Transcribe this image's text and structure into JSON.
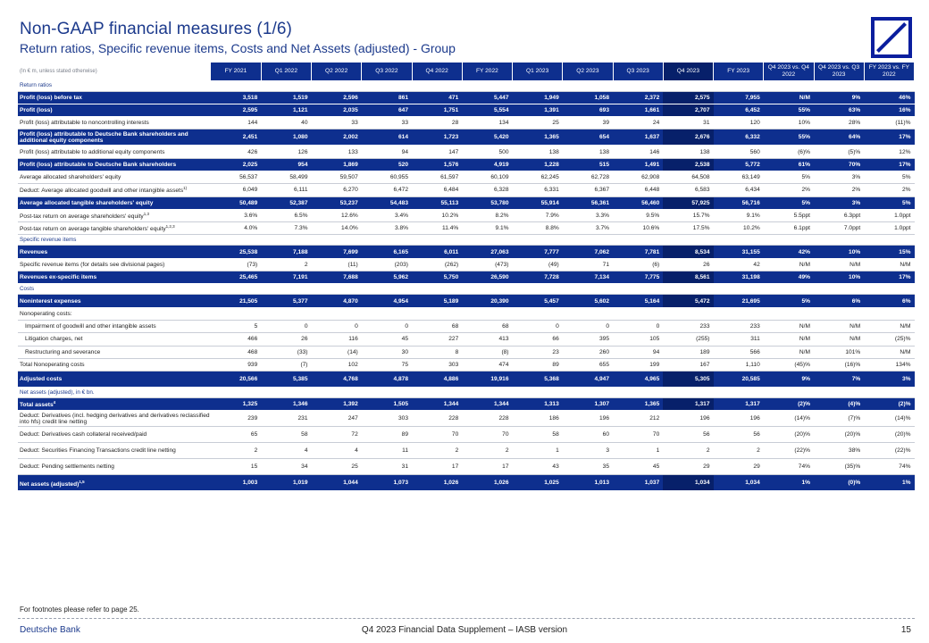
{
  "header": {
    "title": "Non-GAAP financial measures (1/6)",
    "subtitle": "Return ratios, Specific revenue items, Costs and Net Assets (adjusted) - Group"
  },
  "table": {
    "unit_note": "(In € m, unless stated otherwise)",
    "columns": [
      "FY 2021",
      "Q1 2022",
      "Q2 2022",
      "Q3 2022",
      "Q4 2022",
      "FY 2022",
      "Q1 2023",
      "Q2 2023",
      "Q3 2023",
      "Q4 2023",
      "FY 2023",
      "Q4 2023 vs. Q4 2022",
      "Q4 2023 vs. Q3 2023",
      "FY 2023 vs. FY 2022"
    ],
    "rows": [
      {
        "type": "sec",
        "label": "Return ratios"
      },
      {
        "type": "bold",
        "label": "Profit (loss) before tax",
        "v": [
          "3,518",
          "1,519",
          "2,596",
          "861",
          "471",
          "5,447",
          "1,949",
          "1,058",
          "2,372",
          "2,575",
          "7,955",
          "N/M",
          "9%",
          "46%"
        ]
      },
      {
        "type": "bold",
        "label": "Profit (loss)",
        "v": [
          "2,595",
          "1,121",
          "2,035",
          "647",
          "1,751",
          "5,554",
          "1,391",
          "693",
          "1,661",
          "2,707",
          "6,452",
          "55%",
          "63%",
          "16%"
        ]
      },
      {
        "type": "norm",
        "label": "Profit (loss) attributable to noncontrolling interests",
        "v": [
          "144",
          "40",
          "33",
          "33",
          "28",
          "134",
          "25",
          "39",
          "24",
          "31",
          "120",
          "10%",
          "28%",
          "(11)%"
        ]
      },
      {
        "type": "bold tall",
        "label": "Profit (loss) attributable to Deutsche Bank shareholders and additional equity components",
        "v": [
          "2,451",
          "1,080",
          "2,002",
          "614",
          "1,723",
          "5,420",
          "1,365",
          "654",
          "1,637",
          "2,676",
          "6,332",
          "55%",
          "64%",
          "17%"
        ]
      },
      {
        "type": "norm",
        "label": "Profit (loss) attributable to additional equity components",
        "v": [
          "426",
          "126",
          "133",
          "94",
          "147",
          "500",
          "138",
          "138",
          "146",
          "138",
          "560",
          "(6)%",
          "(5)%",
          "12%"
        ]
      },
      {
        "type": "bold",
        "label": "Profit (loss) attributable to Deutsche Bank shareholders",
        "v": [
          "2,025",
          "954",
          "1,869",
          "520",
          "1,576",
          "4,919",
          "1,228",
          "515",
          "1,491",
          "2,538",
          "5,772",
          "61%",
          "70%",
          "17%"
        ]
      },
      {
        "type": "norm",
        "label": "Average allocated shareholders' equity",
        "v": [
          "56,537",
          "58,499",
          "59,507",
          "60,955",
          "61,597",
          "60,109",
          "62,245",
          "62,728",
          "62,908",
          "64,508",
          "63,149",
          "5%",
          "3%",
          "5%"
        ]
      },
      {
        "type": "norm",
        "label": "Deduct: Average allocated goodwill and other intangible assets",
        "sup": "1)",
        "v": [
          "6,049",
          "6,111",
          "6,270",
          "6,472",
          "6,484",
          "6,328",
          "6,331",
          "6,367",
          "6,448",
          "6,583",
          "6,434",
          "2%",
          "2%",
          "2%"
        ]
      },
      {
        "type": "bold",
        "label": "Average allocated tangible shareholders' equity",
        "v": [
          "50,489",
          "52,387",
          "53,237",
          "54,483",
          "55,113",
          "53,780",
          "55,914",
          "56,361",
          "56,460",
          "57,925",
          "56,716",
          "5%",
          "3%",
          "5%"
        ]
      },
      {
        "type": "norm",
        "label": "Post-tax return on average shareholders' equity",
        "sup": "1,3",
        "v": [
          "3.6%",
          "6.5%",
          "12.6%",
          "3.4%",
          "10.2%",
          "8.2%",
          "7.9%",
          "3.3%",
          "9.5%",
          "15.7%",
          "9.1%",
          "5.5ppt",
          "6.3ppt",
          "1.0ppt"
        ]
      },
      {
        "type": "norm",
        "label": "Post-tax return on average tangible shareholders' equity",
        "sup": "1,2,3",
        "v": [
          "4.0%",
          "7.3%",
          "14.0%",
          "3.8%",
          "11.4%",
          "9.1%",
          "8.8%",
          "3.7%",
          "10.6%",
          "17.5%",
          "10.2%",
          "6.1ppt",
          "7.0ppt",
          "1.0ppt"
        ]
      },
      {
        "type": "sec",
        "label": "Specific revenue items"
      },
      {
        "type": "bold",
        "label": "Revenues",
        "v": [
          "25,538",
          "7,188",
          "7,699",
          "6,165",
          "6,011",
          "27,063",
          "7,777",
          "7,062",
          "7,781",
          "8,534",
          "31,155",
          "42%",
          "10%",
          "15%"
        ]
      },
      {
        "type": "norm",
        "label": "Specific revenue items (for details see divisional pages)",
        "v": [
          "(73)",
          "2",
          "(11)",
          "(203)",
          "(262)",
          "(473)",
          "(49)",
          "71",
          "(6)",
          "26",
          "42",
          "N/M",
          "N/M",
          "N/M"
        ]
      },
      {
        "type": "bold",
        "label": "Revenues ex-specific items",
        "v": [
          "25,465",
          "7,191",
          "7,688",
          "5,962",
          "5,750",
          "26,590",
          "7,728",
          "7,134",
          "7,775",
          "8,561",
          "31,198",
          "49%",
          "10%",
          "17%"
        ]
      },
      {
        "type": "sec",
        "label": "Costs"
      },
      {
        "type": "bold",
        "label": "Noninterest expenses",
        "v": [
          "21,505",
          "5,377",
          "4,870",
          "4,954",
          "5,189",
          "20,390",
          "5,457",
          "5,602",
          "5,164",
          "5,472",
          "21,695",
          "5%",
          "6%",
          "6%"
        ]
      },
      {
        "type": "norm",
        "label": "Nonoperating costs:",
        "v": [
          "",
          "",
          "",
          "",
          "",
          "",
          "",
          "",
          "",
          "",
          "",
          "",
          "",
          ""
        ]
      },
      {
        "type": "norm ind",
        "label": "Impairment of goodwill and other intangible assets",
        "v": [
          "5",
          "0",
          "0",
          "0",
          "68",
          "68",
          "0",
          "0",
          "0",
          "233",
          "233",
          "N/M",
          "N/M",
          "N/M"
        ]
      },
      {
        "type": "norm ind",
        "label": "Litigation charges, net",
        "v": [
          "466",
          "26",
          "116",
          "45",
          "227",
          "413",
          "66",
          "395",
          "105",
          "(255)",
          "311",
          "N/M",
          "N/M",
          "(25)%"
        ]
      },
      {
        "type": "norm ind",
        "label": "Restructuring and severance",
        "v": [
          "468",
          "(33)",
          "(14)",
          "30",
          "8",
          "(8)",
          "23",
          "260",
          "94",
          "189",
          "566",
          "N/M",
          "101%",
          "N/M"
        ]
      },
      {
        "type": "norm",
        "label": "Total Nonoperating costs",
        "v": [
          "939",
          "(7)",
          "102",
          "75",
          "303",
          "474",
          "89",
          "655",
          "199",
          "167",
          "1,110",
          "(45)%",
          "(16)%",
          "134%"
        ]
      },
      {
        "type": "bold tall",
        "label": "Adjusted costs",
        "v": [
          "20,566",
          "5,385",
          "4,768",
          "4,878",
          "4,886",
          "19,916",
          "5,368",
          "4,947",
          "4,965",
          "5,305",
          "20,585",
          "9%",
          "7%",
          "3%"
        ]
      },
      {
        "type": "sec",
        "label": "Net assets (adjusted), in € bn."
      },
      {
        "type": "bold",
        "label": "Total assets",
        "sup": "4",
        "v": [
          "1,325",
          "1,346",
          "1,392",
          "1,505",
          "1,344",
          "1,344",
          "1,313",
          "1,307",
          "1,365",
          "1,317",
          "1,317",
          "(2)%",
          "(4)%",
          "(2)%"
        ]
      },
      {
        "type": "norm tallb",
        "label": "Deduct: Derivatives (incl. hedging derivatives and derivatives reclassified into hfs) credit line netting",
        "v": [
          "239",
          "231",
          "247",
          "303",
          "228",
          "228",
          "186",
          "196",
          "212",
          "196",
          "196",
          "(14)%",
          "(7)%",
          "(14)%"
        ]
      },
      {
        "type": "norm tallb",
        "label": "Deduct: Derivatives cash collateral received/paid",
        "v": [
          "65",
          "58",
          "72",
          "89",
          "70",
          "70",
          "58",
          "60",
          "70",
          "56",
          "56",
          "(20)%",
          "(20)%",
          "(20)%"
        ]
      },
      {
        "type": "norm tallb",
        "label": "Deduct: Securities Financing Transactions credit line netting",
        "v": [
          "2",
          "4",
          "4",
          "11",
          "2",
          "2",
          "1",
          "3",
          "1",
          "2",
          "2",
          "(22)%",
          "38%",
          "(22)%"
        ]
      },
      {
        "type": "norm tallb",
        "label": "Deduct: Pending settlements netting",
        "v": [
          "15",
          "34",
          "25",
          "31",
          "17",
          "17",
          "43",
          "35",
          "45",
          "29",
          "29",
          "74%",
          "(35)%",
          "74%"
        ]
      },
      {
        "type": "bold tallb",
        "label": "Net assets (adjusted)",
        "sup": "1,5",
        "v": [
          "1,003",
          "1,019",
          "1,044",
          "1,073",
          "1,026",
          "1,026",
          "1,025",
          "1,013",
          "1,037",
          "1,034",
          "1,034",
          "1%",
          "(0)%",
          "1%"
        ]
      }
    ]
  },
  "footer": {
    "footnote": "For footnotes please refer to page 25.",
    "company": "Deutsche Bank",
    "document": "Q4 2023 Financial Data Supplement – IASB version",
    "page": "15"
  },
  "colors": {
    "brand": "#0e2f8e",
    "highlight": "#07206a",
    "title": "#1c3a8c"
  },
  "icons": {
    "logo": "deutsche-bank-logo-icon"
  }
}
